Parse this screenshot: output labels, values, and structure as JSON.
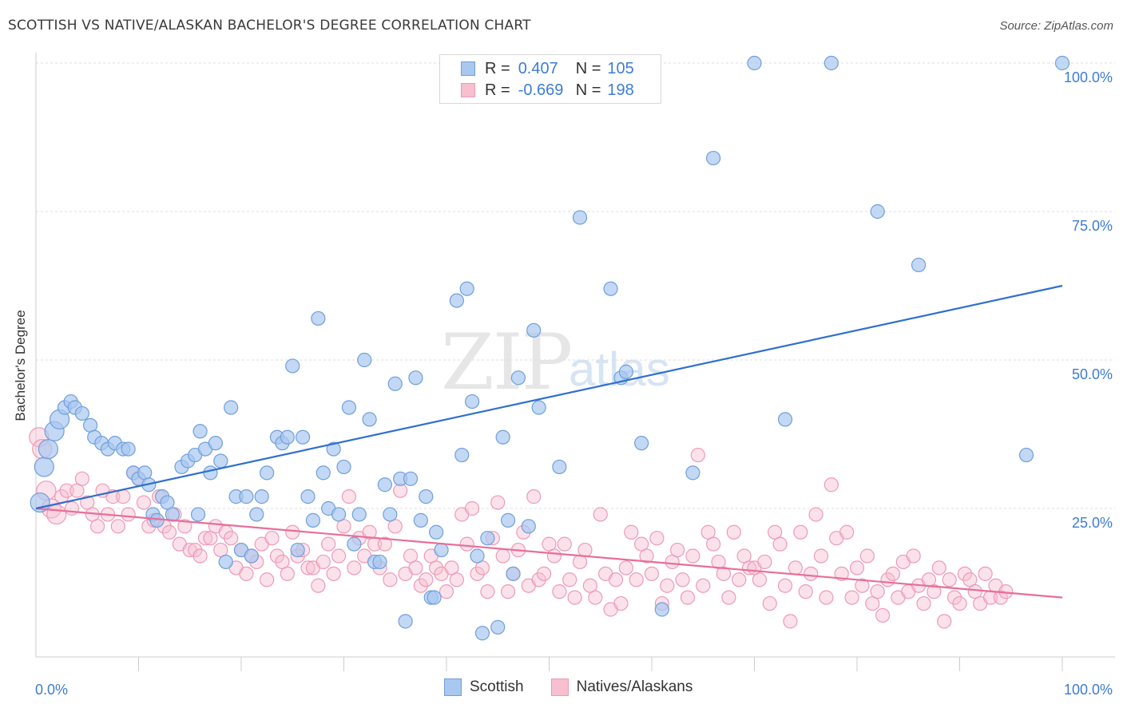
{
  "header": {
    "title": "SCOTTISH VS NATIVE/ALASKAN BACHELOR'S DEGREE CORRELATION CHART",
    "source": "Source: ZipAtlas.com"
  },
  "watermark": {
    "zip": "ZIP",
    "atlas": "atlas"
  },
  "colors": {
    "scottish_fill": "#a9c8f0",
    "scottish_stroke": "#6f9fdc",
    "scottish_line": "#2f6fce",
    "native_fill": "#f7bfd0",
    "native_stroke": "#ee9ab5",
    "native_line": "#e86e98",
    "tick_label": "#3d7cd6",
    "grid": "#dddddd"
  },
  "legend_top": {
    "rows": [
      {
        "r_label": "R =",
        "r_value": "0.407",
        "n_label": "N =",
        "n_value": "105"
      },
      {
        "r_label": "R =",
        "r_value": "-0.669",
        "n_label": "N =",
        "n_value": "198"
      }
    ]
  },
  "legend_bottom": {
    "items": [
      "Scottish",
      "Natives/Alaskans"
    ]
  },
  "chart_data": {
    "type": "scatter",
    "title": "SCOTTISH VS NATIVE/ALASKAN BACHELOR'S DEGREE CORRELATION CHART",
    "xlabel": "",
    "ylabel": "Bachelor's Degree",
    "xlim": [
      0,
      100
    ],
    "ylim": [
      0,
      100
    ],
    "x_tick_labels": [
      "0.0%",
      "100.0%"
    ],
    "y_tick_labels": [
      "25.0%",
      "50.0%",
      "75.0%",
      "100.0%"
    ],
    "y_ticks": [
      25,
      50,
      75,
      100
    ],
    "grid": true,
    "legend_position": "top-center",
    "series": [
      {
        "name": "Scottish",
        "r": 0.407,
        "n": 105,
        "trend": {
          "x": [
            0,
            100
          ],
          "y": [
            25.0,
            62.5
          ]
        },
        "points": [
          [
            0.4,
            26
          ],
          [
            0.8,
            32
          ],
          [
            1.2,
            35
          ],
          [
            1.8,
            38
          ],
          [
            2.3,
            40
          ],
          [
            2.8,
            42
          ],
          [
            3.4,
            43
          ],
          [
            3.8,
            42
          ],
          [
            4.5,
            41
          ],
          [
            5.3,
            39
          ],
          [
            5.7,
            37
          ],
          [
            6.4,
            36
          ],
          [
            7,
            35
          ],
          [
            7.7,
            36
          ],
          [
            8.5,
            35
          ],
          [
            9,
            35
          ],
          [
            9.5,
            31
          ],
          [
            10,
            30
          ],
          [
            10.6,
            31
          ],
          [
            11,
            29
          ],
          [
            11.4,
            24
          ],
          [
            11.8,
            23
          ],
          [
            12.3,
            27
          ],
          [
            12.8,
            26
          ],
          [
            13.3,
            24
          ],
          [
            14.2,
            32
          ],
          [
            14.8,
            33
          ],
          [
            15.5,
            34
          ],
          [
            15.8,
            24
          ],
          [
            16,
            38
          ],
          [
            16.5,
            35
          ],
          [
            17,
            31
          ],
          [
            17.5,
            36
          ],
          [
            18,
            33
          ],
          [
            18.5,
            16
          ],
          [
            19,
            42
          ],
          [
            19.5,
            27
          ],
          [
            20,
            18
          ],
          [
            20.5,
            27
          ],
          [
            21,
            17
          ],
          [
            21.5,
            24
          ],
          [
            22,
            27
          ],
          [
            22.5,
            31
          ],
          [
            23.5,
            37
          ],
          [
            24,
            36
          ],
          [
            24.5,
            37
          ],
          [
            25,
            49
          ],
          [
            25.5,
            18
          ],
          [
            26,
            37
          ],
          [
            26.5,
            27
          ],
          [
            27,
            23
          ],
          [
            27.5,
            57
          ],
          [
            28,
            31
          ],
          [
            28.5,
            25
          ],
          [
            29,
            35
          ],
          [
            29.5,
            24
          ],
          [
            30,
            32
          ],
          [
            30.5,
            42
          ],
          [
            31,
            19
          ],
          [
            31.5,
            24
          ],
          [
            32,
            50
          ],
          [
            32.5,
            40
          ],
          [
            33,
            16
          ],
          [
            33.5,
            16
          ],
          [
            34,
            29
          ],
          [
            34.5,
            24
          ],
          [
            35,
            46
          ],
          [
            35.5,
            30
          ],
          [
            36,
            6
          ],
          [
            36.5,
            30
          ],
          [
            37,
            47
          ],
          [
            37.5,
            23
          ],
          [
            38,
            27
          ],
          [
            38.5,
            10
          ],
          [
            38.8,
            10
          ],
          [
            39,
            21
          ],
          [
            39.5,
            18
          ],
          [
            41,
            60
          ],
          [
            41.5,
            34
          ],
          [
            42,
            62
          ],
          [
            42.5,
            43
          ],
          [
            43,
            17
          ],
          [
            43.5,
            4
          ],
          [
            44,
            20
          ],
          [
            45,
            5
          ],
          [
            45.5,
            37
          ],
          [
            46,
            23
          ],
          [
            46.5,
            14
          ],
          [
            47,
            47
          ],
          [
            48,
            22
          ],
          [
            48.5,
            55
          ],
          [
            49,
            42
          ],
          [
            51,
            32
          ],
          [
            53,
            74
          ],
          [
            56,
            62
          ],
          [
            57,
            47
          ],
          [
            57.5,
            48
          ],
          [
            59,
            36
          ],
          [
            61,
            8
          ],
          [
            64,
            31
          ],
          [
            66,
            84
          ],
          [
            70,
            100
          ],
          [
            73,
            40
          ],
          [
            77.5,
            100
          ],
          [
            82,
            75
          ],
          [
            86,
            66
          ],
          [
            96.5,
            34
          ],
          [
            100,
            100
          ]
        ]
      },
      {
        "name": "Natives/Alaskans",
        "r": -0.669,
        "n": 198,
        "trend": {
          "x": [
            0,
            100
          ],
          "y": [
            25.0,
            10.0
          ]
        },
        "points": [
          [
            0.3,
            37
          ],
          [
            0.6,
            35
          ],
          [
            1,
            28
          ],
          [
            1.5,
            25
          ],
          [
            2,
            24
          ],
          [
            2.5,
            27
          ],
          [
            3,
            28
          ],
          [
            3.5,
            25
          ],
          [
            4,
            28
          ],
          [
            4.5,
            30
          ],
          [
            5,
            26
          ],
          [
            5.5,
            24
          ],
          [
            6,
            22
          ],
          [
            6.5,
            28
          ],
          [
            7,
            24
          ],
          [
            7.5,
            27
          ],
          [
            8,
            22
          ],
          [
            8.5,
            27
          ],
          [
            9,
            24
          ],
          [
            9.5,
            31
          ],
          [
            10,
            30
          ],
          [
            10.5,
            26
          ],
          [
            11,
            22
          ],
          [
            11.5,
            23
          ],
          [
            12,
            27
          ],
          [
            12.5,
            22
          ],
          [
            13,
            21
          ],
          [
            13.5,
            24
          ],
          [
            14,
            19
          ],
          [
            14.5,
            22
          ],
          [
            15,
            18
          ],
          [
            15.5,
            18
          ],
          [
            16,
            17
          ],
          [
            16.5,
            20
          ],
          [
            17,
            20
          ],
          [
            17.5,
            22
          ],
          [
            18,
            18
          ],
          [
            18.5,
            21
          ],
          [
            19,
            20
          ],
          [
            19.5,
            15
          ],
          [
            20,
            18
          ],
          [
            20.5,
            14
          ],
          [
            21,
            17
          ],
          [
            21.5,
            16
          ],
          [
            22,
            19
          ],
          [
            22.5,
            13
          ],
          [
            23,
            20
          ],
          [
            23.5,
            17
          ],
          [
            24,
            16
          ],
          [
            24.5,
            14
          ],
          [
            25,
            21
          ],
          [
            25.5,
            17
          ],
          [
            26,
            18
          ],
          [
            26.5,
            15
          ],
          [
            27,
            15
          ],
          [
            27.5,
            12
          ],
          [
            28,
            16
          ],
          [
            28.5,
            19
          ],
          [
            29,
            14
          ],
          [
            29.5,
            17
          ],
          [
            30,
            22
          ],
          [
            30.5,
            27
          ],
          [
            31,
            15
          ],
          [
            31.5,
            20
          ],
          [
            32,
            17
          ],
          [
            32.5,
            21
          ],
          [
            33,
            19
          ],
          [
            33.5,
            15
          ],
          [
            34,
            19
          ],
          [
            34.5,
            13
          ],
          [
            35,
            22
          ],
          [
            35.5,
            28
          ],
          [
            36,
            14
          ],
          [
            36.5,
            17
          ],
          [
            37,
            15
          ],
          [
            37.5,
            12
          ],
          [
            38,
            13
          ],
          [
            38.5,
            17
          ],
          [
            39,
            15
          ],
          [
            39.5,
            14
          ],
          [
            40,
            11
          ],
          [
            40.5,
            15
          ],
          [
            41,
            13
          ],
          [
            41.5,
            24
          ],
          [
            42,
            19
          ],
          [
            42.5,
            25
          ],
          [
            43,
            14
          ],
          [
            43.5,
            15
          ],
          [
            44,
            11
          ],
          [
            44.5,
            20
          ],
          [
            45,
            26
          ],
          [
            45.5,
            17
          ],
          [
            46,
            11
          ],
          [
            46.5,
            14
          ],
          [
            47,
            18
          ],
          [
            47.5,
            21
          ],
          [
            48,
            12
          ],
          [
            48.5,
            27
          ],
          [
            49,
            13
          ],
          [
            49.5,
            14
          ],
          [
            50,
            19
          ],
          [
            50.5,
            17
          ],
          [
            51,
            11
          ],
          [
            51.5,
            19
          ],
          [
            52,
            13
          ],
          [
            52.5,
            10
          ],
          [
            53,
            16
          ],
          [
            53.5,
            18
          ],
          [
            54,
            12
          ],
          [
            54.5,
            10
          ],
          [
            55,
            24
          ],
          [
            55.5,
            14
          ],
          [
            56,
            8
          ],
          [
            56.5,
            13
          ],
          [
            57,
            9
          ],
          [
            57.5,
            15
          ],
          [
            58,
            21
          ],
          [
            58.5,
            13
          ],
          [
            59,
            19
          ],
          [
            59.5,
            17
          ],
          [
            60,
            14
          ],
          [
            60.5,
            20
          ],
          [
            61,
            9
          ],
          [
            61.5,
            12
          ],
          [
            62,
            16
          ],
          [
            62.5,
            18
          ],
          [
            63,
            13
          ],
          [
            63.5,
            10
          ],
          [
            64,
            17
          ],
          [
            64.5,
            34
          ],
          [
            65,
            12
          ],
          [
            65.5,
            21
          ],
          [
            66,
            19
          ],
          [
            66.5,
            16
          ],
          [
            67,
            14
          ],
          [
            67.5,
            10
          ],
          [
            68,
            21
          ],
          [
            68.5,
            13
          ],
          [
            69,
            17
          ],
          [
            69.5,
            15
          ],
          [
            70,
            15
          ],
          [
            70.5,
            13
          ],
          [
            71,
            16
          ],
          [
            71.5,
            9
          ],
          [
            72,
            21
          ],
          [
            72.5,
            19
          ],
          [
            73,
            12
          ],
          [
            73.5,
            6
          ],
          [
            74,
            15
          ],
          [
            74.5,
            21
          ],
          [
            75,
            11
          ],
          [
            75.5,
            14
          ],
          [
            76,
            24
          ],
          [
            76.5,
            17
          ],
          [
            77,
            10
          ],
          [
            77.5,
            29
          ],
          [
            78,
            20
          ],
          [
            78.5,
            14
          ],
          [
            79,
            21
          ],
          [
            79.5,
            10
          ],
          [
            80,
            15
          ],
          [
            80.5,
            12
          ],
          [
            81,
            17
          ],
          [
            81.5,
            9
          ],
          [
            82,
            11
          ],
          [
            82.5,
            7
          ],
          [
            83,
            13
          ],
          [
            83.5,
            14
          ],
          [
            84,
            10
          ],
          [
            84.5,
            16
          ],
          [
            85,
            11
          ],
          [
            85.5,
            17
          ],
          [
            86,
            12
          ],
          [
            86.5,
            9
          ],
          [
            87,
            13
          ],
          [
            87.5,
            11
          ],
          [
            88,
            15
          ],
          [
            88.5,
            6
          ],
          [
            89,
            13
          ],
          [
            89.5,
            10
          ],
          [
            90,
            9
          ],
          [
            90.5,
            14
          ],
          [
            91,
            13
          ],
          [
            91.5,
            11
          ],
          [
            92,
            9
          ],
          [
            92.5,
            14
          ],
          [
            93,
            10
          ],
          [
            93.5,
            12
          ],
          [
            94,
            10
          ],
          [
            94.5,
            11
          ]
        ]
      }
    ]
  }
}
